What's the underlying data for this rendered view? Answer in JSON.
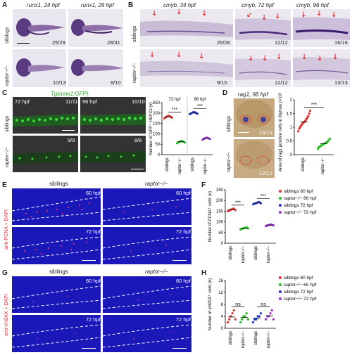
{
  "panels": {
    "A": {
      "letter": "A",
      "titles": [
        "runx1, 24 hpf",
        "runx1, 29 hpf"
      ],
      "rows": [
        "siblings",
        "raptor−/−"
      ],
      "counts": [
        "25/29",
        "28/31",
        "10/13",
        "8/10"
      ]
    },
    "B": {
      "letter": "B",
      "titles": [
        "cmyb, 34 hpf",
        "cmyb, 72 hpf",
        "cmyb, 96 hpf"
      ],
      "rows": [
        "siblings",
        "raptor−/−"
      ],
      "counts": [
        "26/28",
        "12/12",
        "16/16",
        "9/10",
        "12/12",
        "13/13"
      ]
    },
    "C": {
      "letter": "C",
      "title": "Tg(runx1:GFP)",
      "rows": [
        "siblings",
        "raptor−/−"
      ],
      "stages": [
        "72 hpf",
        "96 hpf"
      ],
      "counts": [
        "11/11",
        "10/10",
        "9/9",
        "8/8"
      ]
    },
    "D": {
      "letter": "D",
      "title": "rag1, 96 hpf",
      "rows": [
        "siblings",
        "raptor−/−"
      ],
      "counts": [
        "15/15",
        "12/12"
      ]
    },
    "E": {
      "letter": "E",
      "cols": [
        "siblings",
        "raptor−/−"
      ],
      "stages": [
        "60 hpf",
        "60 hpf",
        "72 hpf",
        "72 hpf"
      ],
      "side": "anti-PCNA + DAPI"
    },
    "G": {
      "letter": "G",
      "cols": [
        "siblings",
        "raptor−/−"
      ],
      "stages": [
        "60 hpf",
        "60 hpf",
        "72 hpf",
        "72 hpf"
      ],
      "side": "anti-γH2AX + DAPI"
    }
  },
  "chart_data": [
    {
      "id": "C",
      "type": "scatter",
      "ylabel": "Number of GFP⁺ HSPCs (#)",
      "ylim": [
        0,
        250
      ],
      "yticks": [
        0,
        50,
        100,
        150,
        200,
        250
      ],
      "group_labels": [
        "72 hpf",
        "96 hpf"
      ],
      "categories": [
        "siblings",
        "raptor−/−",
        "siblings",
        "raptor−/−"
      ],
      "colors": [
        "#e03030",
        "#22bb22",
        "#2233cc",
        "#9933cc"
      ],
      "means": [
        182,
        62,
        200,
        78
      ],
      "points": [
        [
          175,
          180,
          185,
          188,
          182,
          178
        ],
        [
          55,
          60,
          63,
          66,
          62,
          58
        ],
        [
          195,
          198,
          203,
          205,
          200,
          197
        ],
        [
          72,
          76,
          80,
          82,
          78,
          75
        ]
      ],
      "significance": [
        {
          "pair": [
            0,
            1
          ],
          "label": "***"
        },
        {
          "pair": [
            2,
            3
          ],
          "label": "***"
        }
      ]
    },
    {
      "id": "D",
      "type": "scatter",
      "ylabel": "Area of rag1 positive cells in thymus (×10³ μm²)",
      "ylim": [
        0,
        2.0
      ],
      "yticks": [
        0,
        0.5,
        1.0,
        1.5,
        2.0
      ],
      "categories": [
        "siblings",
        "raptor−/−"
      ],
      "colors": [
        "#e03030",
        "#22bb22"
      ],
      "means": [
        1.2,
        0.4
      ],
      "points": [
        [
          0.85,
          0.95,
          1.0,
          1.05,
          1.1,
          1.15,
          1.18,
          1.2,
          1.25,
          1.3,
          1.35,
          1.4,
          1.5,
          1.6
        ],
        [
          0.22,
          0.28,
          0.3,
          0.33,
          0.36,
          0.38,
          0.4,
          0.42,
          0.45,
          0.48,
          0.52,
          0.58
        ]
      ],
      "significance": [
        {
          "pair": [
            0,
            1
          ],
          "label": "***"
        }
      ]
    },
    {
      "id": "F",
      "type": "scatter",
      "ylabel": "Number of PCNA⁺ cells (#)",
      "ylim": [
        0,
        250
      ],
      "yticks": [
        0,
        50,
        100,
        150,
        200,
        250
      ],
      "categories": [
        "siblings",
        "raptor−/−",
        "siblings",
        "raptor−/−"
      ],
      "colors": [
        "#e03030",
        "#22bb22",
        "#2233cc",
        "#9933cc"
      ],
      "means": [
        157,
        70,
        188,
        85
      ],
      "points": [
        [
          150,
          153,
          157,
          160,
          162,
          155
        ],
        [
          65,
          68,
          70,
          72,
          74,
          69
        ],
        [
          182,
          185,
          188,
          191,
          193,
          187
        ],
        [
          80,
          83,
          85,
          88,
          86,
          84
        ]
      ],
      "significance": [
        {
          "pair": [
            0,
            1
          ],
          "label": "***"
        },
        {
          "pair": [
            2,
            3
          ],
          "label": "***"
        }
      ],
      "legend": [
        "siblings 60 hpf",
        "raptor−/− 60 hpf",
        "siblings 72 hpf",
        "raptor−/− 72 hpf"
      ]
    },
    {
      "id": "H",
      "type": "scatter",
      "ylabel": "Number of γH2AX⁺ cells (#)",
      "ylim": [
        0,
        15
      ],
      "yticks": [
        0,
        4,
        8,
        12,
        16
      ],
      "categories": [
        "siblings",
        "raptor−/−",
        "siblings",
        "raptor−/−"
      ],
      "colors": [
        "#e03030",
        "#22bb22",
        "#2233cc",
        "#9933cc"
      ],
      "means": [
        3.8,
        3.6,
        3.4,
        4.2
      ],
      "points": [
        [
          2,
          3,
          4,
          5,
          6,
          3
        ],
        [
          2,
          3,
          4,
          4,
          5,
          3
        ],
        [
          2,
          3,
          3,
          4,
          4,
          5
        ],
        [
          3,
          4,
          4,
          5,
          6,
          3
        ]
      ],
      "significance": [
        {
          "pair": [
            0,
            1
          ],
          "label": "ns"
        },
        {
          "pair": [
            2,
            3
          ],
          "label": "ns"
        }
      ],
      "legend": [
        "siblings 60 hpf",
        "raptor−/− 60 hpf",
        "siblings 72 hpf",
        "raptor−/− 72 hpf"
      ]
    }
  ]
}
